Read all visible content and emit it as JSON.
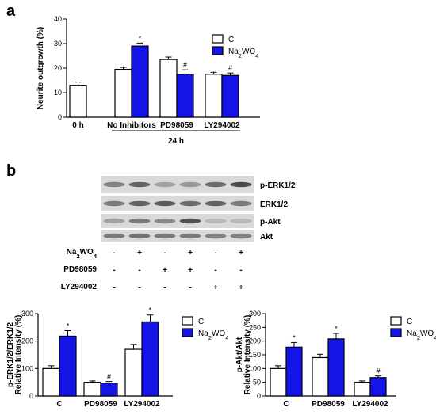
{
  "colors": {
    "control": "#ffffff",
    "treated": "#1414e6",
    "axis": "#000000",
    "blot_bg": "#d9d9d9",
    "band": "#3a3a3a"
  },
  "panel_a": {
    "label": "a"
  },
  "panel_b": {
    "label": "b",
    "blot_rows": [
      "p-ERK1/2",
      "ERK1/2",
      "p-Akt",
      "Akt"
    ],
    "conditions": [
      {
        "label": "Na2WO4",
        "signs": [
          "-",
          "+",
          "-",
          "+",
          "-",
          "+"
        ]
      },
      {
        "label": "PD98059",
        "signs": [
          "-",
          "-",
          "+",
          "+",
          "-",
          "-"
        ]
      },
      {
        "label": "LY294002",
        "signs": [
          "-",
          "-",
          "-",
          "-",
          "+",
          "+"
        ]
      }
    ]
  },
  "chart_data": [
    {
      "id": "neurite",
      "type": "bar",
      "ylabel": "Neurite outgrowth (%)",
      "ylim": [
        0,
        40
      ],
      "yticks": [
        "0",
        "10",
        "20",
        "30",
        "40"
      ],
      "xlabel": "24 h",
      "categories": [
        "0 h",
        "No Inhibitors",
        "PD98059",
        "LY294002"
      ],
      "series": [
        {
          "name": "C",
          "color": "#ffffff",
          "values": [
            13,
            19.5,
            23.5,
            17.5
          ],
          "errors": [
            1.3,
            0.8,
            1.0,
            0.8
          ],
          "annotations": [
            "",
            "",
            "",
            ""
          ]
        },
        {
          "name": "Na2WO4",
          "color": "#1414e6",
          "values": [
            null,
            29,
            17.5,
            17
          ],
          "errors": [
            null,
            1.2,
            1.8,
            1.0
          ],
          "annotations": [
            "",
            "*",
            "#",
            "#"
          ]
        }
      ],
      "legend": "top-right"
    },
    {
      "id": "perk",
      "type": "bar",
      "ylabel": "p-ERK1/2/ERK1/2",
      "ylabel2": "Relative Intensity (%)",
      "ylim": [
        0,
        300
      ],
      "yticks": [
        "0",
        "100",
        "200",
        "300"
      ],
      "categories": [
        "C",
        "PD98059",
        "LY294002"
      ],
      "series": [
        {
          "name": "C",
          "color": "#ffffff",
          "values": [
            100,
            50,
            170
          ],
          "errors": [
            10,
            5,
            18
          ],
          "annotations": [
            "",
            "",
            ""
          ]
        },
        {
          "name": "Na2WO4",
          "color": "#1414e6",
          "values": [
            218,
            47,
            270
          ],
          "errors": [
            20,
            6,
            25
          ],
          "annotations": [
            "*",
            "#",
            "*"
          ]
        }
      ],
      "legend": "top-right"
    },
    {
      "id": "pakt",
      "type": "bar",
      "ylabel": "p-Akt/Akt",
      "ylabel2": "Relative Intensity (%)",
      "ylim": [
        0,
        300
      ],
      "yticks": [
        "0",
        "50",
        "100",
        "150",
        "200",
        "250",
        "300"
      ],
      "categories": [
        "C",
        "PD98059",
        "LY294002"
      ],
      "series": [
        {
          "name": "C",
          "color": "#ffffff",
          "values": [
            100,
            140,
            50
          ],
          "errors": [
            10,
            12,
            5
          ],
          "annotations": [
            "",
            "",
            ""
          ]
        },
        {
          "name": "Na2WO4",
          "color": "#1414e6",
          "values": [
            178,
            208,
            67
          ],
          "errors": [
            17,
            20,
            6
          ],
          "annotations": [
            "*",
            "*",
            "#"
          ]
        }
      ],
      "legend": "top-right"
    }
  ]
}
